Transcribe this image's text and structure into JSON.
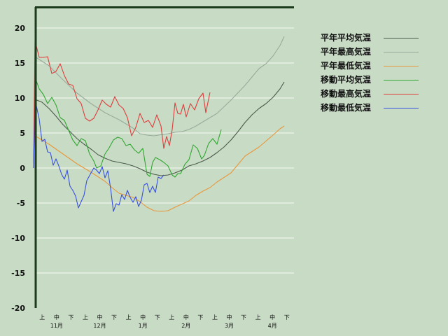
{
  "chart_data": {
    "type": "line",
    "ylim": [
      -20,
      20
    ],
    "yticks": [
      20,
      15,
      10,
      5,
      0,
      -5,
      -10,
      -15,
      -20
    ],
    "x_ticks_minor": [
      "上",
      "中",
      "下",
      "上",
      "中",
      "下",
      "上",
      "中",
      "下",
      "上",
      "中",
      "下",
      "上",
      "中",
      "下",
      "上",
      "中",
      "下"
    ],
    "x_months": [
      "11月",
      "12月",
      "1月",
      "2月",
      "3月",
      "4月"
    ],
    "grid": true,
    "legend_position": "right",
    "series": [
      {
        "name": "平年平均気温",
        "color": "#4a5a4a",
        "values": [
          [
            0,
            9.8
          ],
          [
            5,
            9.4
          ],
          [
            10,
            8.5
          ],
          [
            15,
            7.4
          ],
          [
            20,
            6.2
          ],
          [
            25,
            5.2
          ],
          [
            30,
            4.2
          ],
          [
            35,
            3.4
          ],
          [
            40,
            2.7
          ],
          [
            45,
            1.9
          ],
          [
            50,
            1.4
          ],
          [
            55,
            1.0
          ],
          [
            60,
            0.8
          ],
          [
            65,
            0.6
          ],
          [
            70,
            0.3
          ],
          [
            75,
            -0.1
          ],
          [
            80,
            -0.6
          ],
          [
            85,
            -0.9
          ],
          [
            90,
            -1.1
          ],
          [
            95,
            -1.0
          ],
          [
            100,
            -0.7
          ],
          [
            105,
            -0.3
          ],
          [
            110,
            0.3
          ],
          [
            115,
            0.6
          ],
          [
            120,
            1.0
          ],
          [
            125,
            1.5
          ],
          [
            130,
            2.2
          ],
          [
            135,
            3.0
          ],
          [
            140,
            4.0
          ],
          [
            145,
            5.2
          ],
          [
            150,
            6.5
          ],
          [
            155,
            7.6
          ],
          [
            160,
            8.5
          ],
          [
            165,
            9.2
          ],
          [
            170,
            10.1
          ],
          [
            175,
            11.3
          ],
          [
            178,
            12.3
          ]
        ]
      },
      {
        "name": "平年最高気温",
        "color": "#9aaa9a",
        "values": [
          [
            0,
            15.9
          ],
          [
            10,
            14.6
          ],
          [
            20,
            12.6
          ],
          [
            30,
            10.7
          ],
          [
            40,
            9.2
          ],
          [
            50,
            7.9
          ],
          [
            60,
            6.9
          ],
          [
            70,
            5.7
          ],
          [
            75,
            4.9
          ],
          [
            80,
            4.7
          ],
          [
            85,
            4.6
          ],
          [
            95,
            4.9
          ],
          [
            100,
            5.1
          ],
          [
            105,
            5.2
          ],
          [
            110,
            5.5
          ],
          [
            115,
            6.0
          ],
          [
            120,
            6.6
          ],
          [
            130,
            7.8
          ],
          [
            140,
            9.7
          ],
          [
            150,
            11.8
          ],
          [
            160,
            14.2
          ],
          [
            165,
            14.9
          ],
          [
            170,
            16.0
          ],
          [
            175,
            17.5
          ],
          [
            178,
            18.8
          ]
        ]
      },
      {
        "name": "平年最低気温",
        "color": "#e8963a",
        "values": [
          [
            0,
            4.6
          ],
          [
            10,
            3.4
          ],
          [
            20,
            2.0
          ],
          [
            30,
            0.6
          ],
          [
            40,
            -0.6
          ],
          [
            50,
            -1.9
          ],
          [
            55,
            -2.8
          ],
          [
            60,
            -3.6
          ],
          [
            65,
            -3.9
          ],
          [
            70,
            -4.2
          ],
          [
            75,
            -4.8
          ],
          [
            80,
            -5.6
          ],
          [
            85,
            -6.1
          ],
          [
            90,
            -6.2
          ],
          [
            95,
            -6.1
          ],
          [
            100,
            -5.6
          ],
          [
            110,
            -4.7
          ],
          [
            115,
            -3.9
          ],
          [
            120,
            -3.3
          ],
          [
            125,
            -2.8
          ],
          [
            130,
            -2.0
          ],
          [
            140,
            -0.7
          ],
          [
            145,
            0.5
          ],
          [
            150,
            1.7
          ],
          [
            160,
            3.0
          ],
          [
            170,
            4.7
          ],
          [
            175,
            5.6
          ],
          [
            178,
            6.0
          ]
        ]
      },
      {
        "name": "移動平均気温",
        "color": "#30a630",
        "values": [
          [
            -1,
            0
          ],
          [
            0,
            13.0
          ],
          [
            3,
            11.3
          ],
          [
            6,
            10.5
          ],
          [
            9,
            9.2
          ],
          [
            12,
            10.1
          ],
          [
            15,
            9.0
          ],
          [
            18,
            7.2
          ],
          [
            21,
            6.8
          ],
          [
            24,
            5.4
          ],
          [
            27,
            4.0
          ],
          [
            30,
            3.2
          ],
          [
            33,
            4.2
          ],
          [
            36,
            3.9
          ],
          [
            39,
            2.0
          ],
          [
            42,
            1.0
          ],
          [
            44,
            0.0
          ],
          [
            47,
            0.3
          ],
          [
            50,
            2.0
          ],
          [
            53,
            2.9
          ],
          [
            56,
            4.0
          ],
          [
            59,
            4.4
          ],
          [
            62,
            4.2
          ],
          [
            65,
            3.2
          ],
          [
            68,
            3.4
          ],
          [
            71,
            2.6
          ],
          [
            74,
            2.1
          ],
          [
            77,
            2.8
          ],
          [
            80,
            -0.9
          ],
          [
            82,
            -1.2
          ],
          [
            84,
            0.8
          ],
          [
            86,
            1.5
          ],
          [
            89,
            1.2
          ],
          [
            92,
            0.8
          ],
          [
            95,
            0.3
          ],
          [
            98,
            -1.0
          ],
          [
            100,
            -1.3
          ],
          [
            102,
            -0.8
          ],
          [
            104,
            -0.8
          ],
          [
            107,
            0.5
          ],
          [
            110,
            1.2
          ],
          [
            113,
            3.3
          ],
          [
            116,
            2.8
          ],
          [
            119,
            1.3
          ],
          [
            121,
            1.8
          ],
          [
            124,
            3.5
          ],
          [
            127,
            4.2
          ],
          [
            130,
            3.4
          ],
          [
            133,
            5.5
          ]
        ]
      },
      {
        "name": "移動最高気温",
        "color": "#e03c3c",
        "values": [
          [
            -1,
            0
          ],
          [
            0,
            18.2
          ],
          [
            3,
            15.8
          ],
          [
            6,
            15.8
          ],
          [
            9,
            15.9
          ],
          [
            12,
            13.5
          ],
          [
            15,
            13.8
          ],
          [
            18,
            14.9
          ],
          [
            21,
            13.2
          ],
          [
            24,
            12.0
          ],
          [
            27,
            11.8
          ],
          [
            30,
            9.9
          ],
          [
            33,
            9.2
          ],
          [
            36,
            7.1
          ],
          [
            39,
            6.7
          ],
          [
            42,
            7.1
          ],
          [
            45,
            8.3
          ],
          [
            48,
            9.7
          ],
          [
            51,
            9.1
          ],
          [
            54,
            8.7
          ],
          [
            57,
            10.2
          ],
          [
            60,
            9.0
          ],
          [
            63,
            8.5
          ],
          [
            66,
            7.2
          ],
          [
            69,
            4.6
          ],
          [
            72,
            5.8
          ],
          [
            75,
            7.8
          ],
          [
            78,
            6.5
          ],
          [
            81,
            6.8
          ],
          [
            84,
            5.8
          ],
          [
            87,
            7.6
          ],
          [
            90,
            6.0
          ],
          [
            92,
            2.8
          ],
          [
            94,
            4.5
          ],
          [
            96,
            3.2
          ],
          [
            98,
            5.5
          ],
          [
            100,
            9.3
          ],
          [
            102,
            7.8
          ],
          [
            104,
            7.7
          ],
          [
            106,
            9.1
          ],
          [
            108,
            7.3
          ],
          [
            111,
            9.2
          ],
          [
            114,
            8.3
          ],
          [
            117,
            9.9
          ],
          [
            120,
            10.7
          ],
          [
            122,
            7.9
          ],
          [
            125,
            10.8
          ]
        ]
      },
      {
        "name": "移動最低気温",
        "color": "#3850e0",
        "values": [
          [
            -1,
            0
          ],
          [
            0,
            9.8
          ],
          [
            3,
            7.0
          ],
          [
            5,
            3.8
          ],
          [
            7,
            4.1
          ],
          [
            9,
            2.3
          ],
          [
            11,
            2.2
          ],
          [
            13,
            0.4
          ],
          [
            15,
            1.3
          ],
          [
            17,
            0.3
          ],
          [
            19,
            -0.9
          ],
          [
            21,
            -1.6
          ],
          [
            23,
            -0.3
          ],
          [
            25,
            -2.6
          ],
          [
            27,
            -3.2
          ],
          [
            29,
            -4.0
          ],
          [
            31,
            -5.7
          ],
          [
            33,
            -4.8
          ],
          [
            35,
            -3.9
          ],
          [
            37,
            -1.8
          ],
          [
            40,
            -0.7
          ],
          [
            42,
            0.0
          ],
          [
            44,
            -0.3
          ],
          [
            46,
            -0.8
          ],
          [
            48,
            0.2
          ],
          [
            50,
            -1.4
          ],
          [
            52,
            -0.4
          ],
          [
            54,
            -2.9
          ],
          [
            56,
            -6.2
          ],
          [
            58,
            -5.1
          ],
          [
            60,
            -5.3
          ],
          [
            62,
            -3.8
          ],
          [
            64,
            -4.5
          ],
          [
            66,
            -3.2
          ],
          [
            68,
            -4.2
          ],
          [
            70,
            -4.9
          ],
          [
            72,
            -4.1
          ],
          [
            74,
            -5.5
          ],
          [
            76,
            -4.6
          ],
          [
            78,
            -2.4
          ],
          [
            80,
            -2.2
          ],
          [
            82,
            -3.5
          ],
          [
            84,
            -2.6
          ],
          [
            86,
            -3.5
          ],
          [
            88,
            -1.3
          ],
          [
            90,
            -1.5
          ],
          [
            92,
            -1.0
          ]
        ]
      }
    ]
  }
}
